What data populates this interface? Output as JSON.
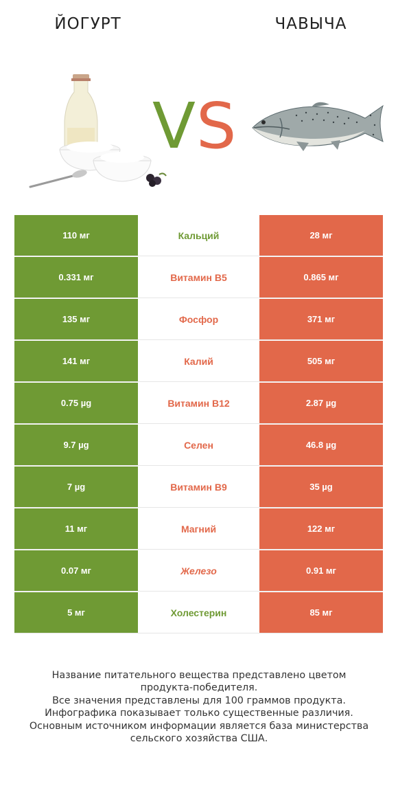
{
  "header": {
    "left_title": "ЙОГУРТ",
    "right_title": "ЧАВЫЧА",
    "vs_v": "V",
    "vs_s": "S"
  },
  "colors": {
    "left_accent": "#6f9a34",
    "right_accent": "#e2684a"
  },
  "rows": [
    {
      "left": "110 мг",
      "nutrient": "Кальций",
      "right": "28 мг",
      "winner": "left"
    },
    {
      "left": "0.331 мг",
      "nutrient": "Витамин B5",
      "right": "0.865 мг",
      "winner": "right"
    },
    {
      "left": "135 мг",
      "nutrient": "Фосфор",
      "right": "371 мг",
      "winner": "right"
    },
    {
      "left": "141 мг",
      "nutrient": "Калий",
      "right": "505 мг",
      "winner": "right"
    },
    {
      "left": "0.75 µg",
      "nutrient": "Витамин B12",
      "right": "2.87 µg",
      "winner": "right"
    },
    {
      "left": "9.7 µg",
      "nutrient": "Селен",
      "right": "46.8 µg",
      "winner": "right"
    },
    {
      "left": "7 µg",
      "nutrient": "Витамин B9",
      "right": "35 µg",
      "winner": "right"
    },
    {
      "left": "11 мг",
      "nutrient": "Магний",
      "right": "122 мг",
      "winner": "right"
    },
    {
      "left": "0.07 мг",
      "nutrient": "Железо",
      "right": "0.91 мг",
      "winner": "right"
    },
    {
      "left": "5 мг",
      "nutrient": "Холестерин",
      "right": "85 мг",
      "winner": "left"
    }
  ],
  "footer": {
    "line1": "Название питательного вещества представлено цветом",
    "line2": "продукта-победителя.",
    "line3": "Все значения представлены для 100 граммов продукта.",
    "line4": "Инфографика показывает только существенные различия.",
    "line5": "Основным источником информации является база министерства",
    "line6": "сельского хозяйства США."
  }
}
